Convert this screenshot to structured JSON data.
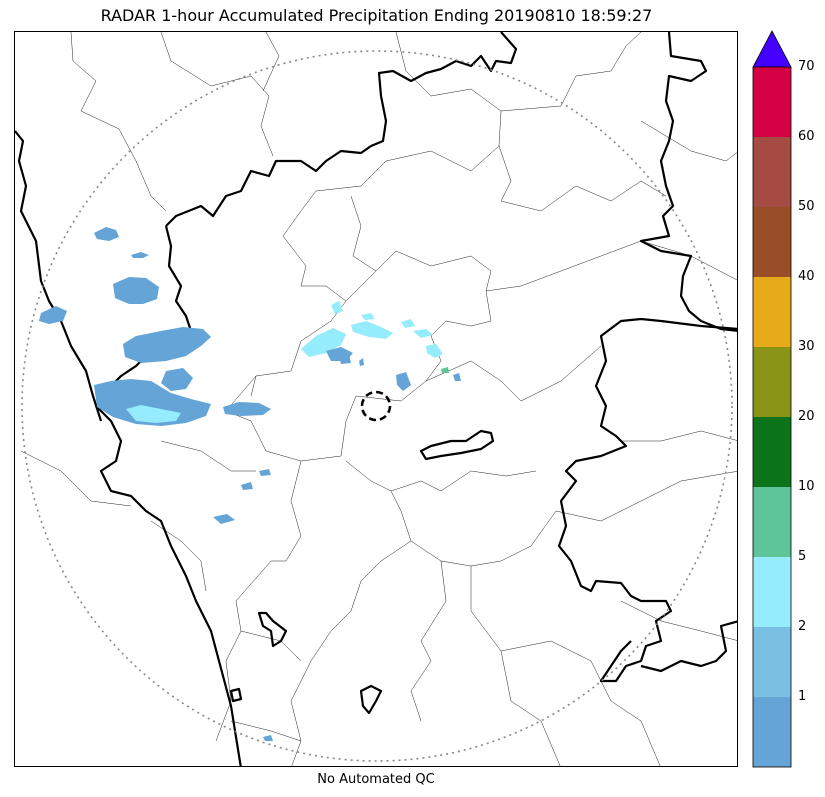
{
  "title": "RADAR 1-hour Accumulated Precipitation Ending 20190810 18:59:27",
  "footer": "No Automated QC",
  "colorbar": {
    "tick_labels": [
      "1",
      "2",
      "5",
      "10",
      "20",
      "30",
      "40",
      "50",
      "60",
      "70"
    ],
    "segments": [
      {
        "from": 0,
        "to": 1,
        "color": "#64a4d6"
      },
      {
        "from": 1,
        "to": 2,
        "color": "#7ac0e2"
      },
      {
        "from": 2,
        "to": 5,
        "color": "#95ecfc"
      },
      {
        "from": 5,
        "to": 10,
        "color": "#5ec49a"
      },
      {
        "from": 10,
        "to": 20,
        "color": "#0c741a"
      },
      {
        "from": 20,
        "to": 30,
        "color": "#8a9416"
      },
      {
        "from": 30,
        "to": 40,
        "color": "#e6aa1a"
      },
      {
        "from": 40,
        "to": 50,
        "color": "#9a4e28"
      },
      {
        "from": 50,
        "to": 60,
        "color": "#a64a44"
      },
      {
        "from": 60,
        "to": 70,
        "color": "#d40044"
      }
    ],
    "over_color": "#4400ff"
  },
  "map": {
    "range_ring": "dotted",
    "radar_site_marker": "dashed-circle",
    "boundary_color": "#000000"
  }
}
